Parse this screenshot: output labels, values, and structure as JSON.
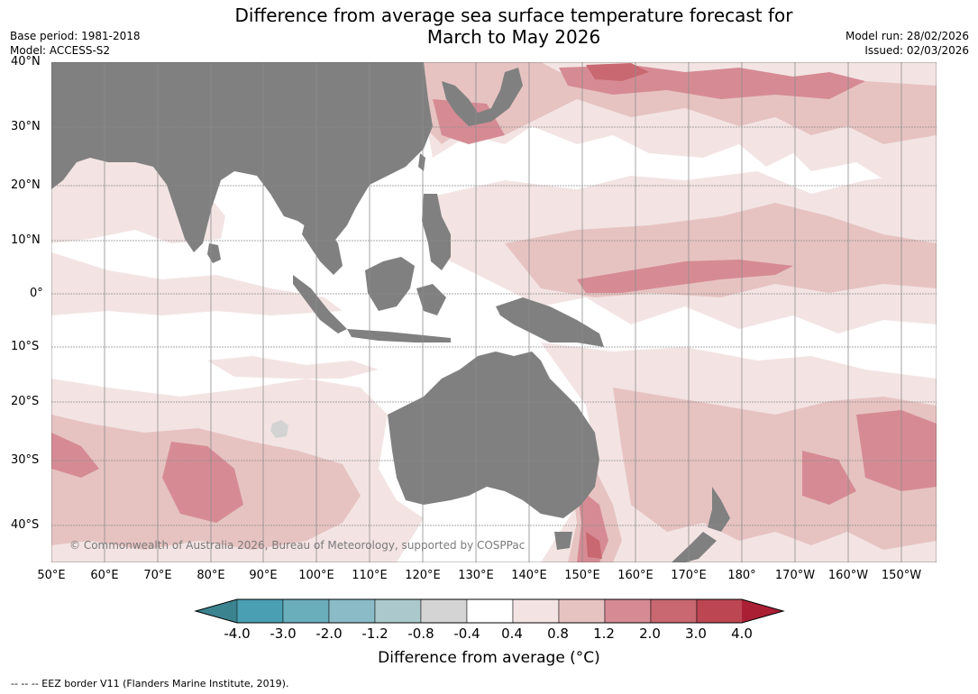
{
  "title": {
    "line1": "Difference from average sea surface temperature forecast for",
    "line2": "March to May 2026"
  },
  "meta": {
    "base_period": "Base period: 1981-2018",
    "model": "Model: ACCESS-S2",
    "model_run": "Model run: 28/02/2026",
    "issued": "Issued: 02/03/2026"
  },
  "map": {
    "lat_labels": [
      "40°N",
      "30°N",
      "20°N",
      "10°N",
      "0°",
      "10°S",
      "20°S",
      "30°S",
      "40°S"
    ],
    "lon_labels": [
      "50°E",
      "60°E",
      "70°E",
      "80°E",
      "90°E",
      "100°E",
      "110°E",
      "120°E",
      "130°E",
      "140°E",
      "150°E",
      "160°E",
      "170°E",
      "180°",
      "170°W",
      "160°W",
      "150°W"
    ],
    "copyright": "© Commonwealth of Australia 2026, Bureau of Meteorology, supported by COSPPac",
    "colors": {
      "land": "#808080",
      "grid": "#8c8c8c",
      "anom_0_4_0_8": "#f3e4e3",
      "anom_0_8_1_2": "#e6c3c1",
      "anom_1_2_2_0": "#d68b94",
      "anom_2_0_3_0": "#c96870",
      "anom_missing": "#d3d3d3"
    }
  },
  "colorbar": {
    "ticks": [
      "-4.0",
      "-3.0",
      "-2.0",
      "-1.2",
      "-0.8",
      "-0.4",
      "0.4",
      "0.8",
      "1.2",
      "2.0",
      "3.0",
      "4.0"
    ],
    "colors": [
      "#3b838f",
      "#4aa0b2",
      "#6aaebc",
      "#8bbbc6",
      "#abc9cc",
      "#d4d4d4",
      "#ffffff",
      "#f3e4e3",
      "#e6c3c1",
      "#d68b94",
      "#c96870",
      "#bd4653",
      "#ab1f35"
    ],
    "label": "Difference from average (°C)"
  },
  "footer": {
    "eez_note": "--  --  -- EEZ border V11 (Flanders Marine Institute, 2019)."
  }
}
